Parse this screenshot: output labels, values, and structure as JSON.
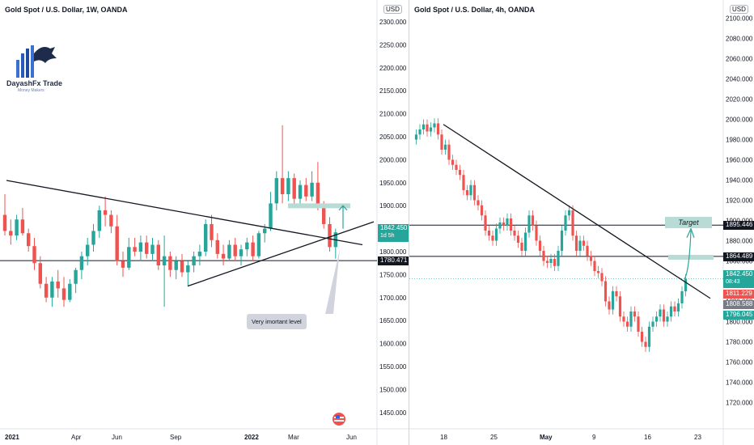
{
  "brand": {
    "name": "DayashFx Trade",
    "tagline": "Money Makers",
    "colors": {
      "bull": "#26a69a",
      "bear": "#ef5350",
      "accent": "#2962ff",
      "logo": "#1e2b4a"
    }
  },
  "currency_label": "USD",
  "annotation": {
    "callout": "Very imortant level",
    "target": "Target"
  },
  "chart_data": [
    {
      "type": "candlestick",
      "title": "Gold Spot / U.S. Dollar, 1W, OANDA",
      "ylim": [
        1432,
        2330
      ],
      "y_ticks": [
        "2300.000",
        "2250.000",
        "2200.000",
        "2150.000",
        "2100.000",
        "2050.000",
        "2000.000",
        "1950.000",
        "1900.000",
        "1850.000",
        "1800.000",
        "1750.000",
        "1700.000",
        "1650.000",
        "1600.000",
        "1550.000",
        "1500.000",
        "1450.000"
      ],
      "x_ticks": [
        "2021",
        "Apr",
        "Jun",
        "Sep",
        "2022",
        "Mar",
        "Jun"
      ],
      "price_labels": [
        {
          "value": "1842.450",
          "sub": "1d 5h",
          "color": "#26a69a"
        },
        {
          "value": "1780.471",
          "color": "#131722"
        }
      ],
      "levels": [
        1780.471
      ],
      "trendlines": [
        {
          "from": [
            "2021",
            1955
          ],
          "to": [
            "Jun",
            1815
          ]
        },
        {
          "from": [
            "Sep",
            1725
          ],
          "to": [
            "Jun",
            1865
          ]
        }
      ],
      "candles": [
        {
          "o": 1880,
          "h": 1925,
          "l": 1835,
          "c": 1845
        },
        {
          "o": 1845,
          "h": 1870,
          "l": 1815,
          "c": 1835
        },
        {
          "o": 1835,
          "h": 1880,
          "l": 1825,
          "c": 1870
        },
        {
          "o": 1870,
          "h": 1895,
          "l": 1835,
          "c": 1840
        },
        {
          "o": 1840,
          "h": 1850,
          "l": 1800,
          "c": 1812
        },
        {
          "o": 1812,
          "h": 1830,
          "l": 1760,
          "c": 1775
        },
        {
          "o": 1775,
          "h": 1790,
          "l": 1720,
          "c": 1730
        },
        {
          "o": 1730,
          "h": 1745,
          "l": 1690,
          "c": 1700
        },
        {
          "o": 1700,
          "h": 1745,
          "l": 1680,
          "c": 1735
        },
        {
          "o": 1735,
          "h": 1760,
          "l": 1700,
          "c": 1720
        },
        {
          "o": 1720,
          "h": 1745,
          "l": 1680,
          "c": 1695
        },
        {
          "o": 1695,
          "h": 1740,
          "l": 1690,
          "c": 1730
        },
        {
          "o": 1730,
          "h": 1765,
          "l": 1710,
          "c": 1760
        },
        {
          "o": 1760,
          "h": 1800,
          "l": 1740,
          "c": 1790
        },
        {
          "o": 1790,
          "h": 1830,
          "l": 1770,
          "c": 1815
        },
        {
          "o": 1815,
          "h": 1860,
          "l": 1800,
          "c": 1845
        },
        {
          "o": 1845,
          "h": 1900,
          "l": 1830,
          "c": 1890
        },
        {
          "o": 1890,
          "h": 1920,
          "l": 1855,
          "c": 1880
        },
        {
          "o": 1880,
          "h": 1890,
          "l": 1840,
          "c": 1855
        },
        {
          "o": 1855,
          "h": 1880,
          "l": 1770,
          "c": 1780
        },
        {
          "o": 1780,
          "h": 1800,
          "l": 1745,
          "c": 1765
        },
        {
          "o": 1765,
          "h": 1830,
          "l": 1760,
          "c": 1810
        },
        {
          "o": 1810,
          "h": 1830,
          "l": 1790,
          "c": 1800
        },
        {
          "o": 1800,
          "h": 1835,
          "l": 1780,
          "c": 1820
        },
        {
          "o": 1820,
          "h": 1835,
          "l": 1785,
          "c": 1795
        },
        {
          "o": 1795,
          "h": 1830,
          "l": 1780,
          "c": 1815
        },
        {
          "o": 1815,
          "h": 1825,
          "l": 1760,
          "c": 1770
        },
        {
          "o": 1770,
          "h": 1835,
          "l": 1680,
          "c": 1790
        },
        {
          "o": 1790,
          "h": 1800,
          "l": 1745,
          "c": 1760
        },
        {
          "o": 1760,
          "h": 1790,
          "l": 1740,
          "c": 1780
        },
        {
          "o": 1780,
          "h": 1795,
          "l": 1745,
          "c": 1755
        },
        {
          "o": 1755,
          "h": 1780,
          "l": 1725,
          "c": 1770
        },
        {
          "o": 1770,
          "h": 1800,
          "l": 1755,
          "c": 1790
        },
        {
          "o": 1790,
          "h": 1815,
          "l": 1770,
          "c": 1800
        },
        {
          "o": 1800,
          "h": 1870,
          "l": 1790,
          "c": 1860
        },
        {
          "o": 1860,
          "h": 1880,
          "l": 1810,
          "c": 1825
        },
        {
          "o": 1825,
          "h": 1840,
          "l": 1785,
          "c": 1795
        },
        {
          "o": 1795,
          "h": 1815,
          "l": 1770,
          "c": 1785
        },
        {
          "o": 1785,
          "h": 1825,
          "l": 1780,
          "c": 1815
        },
        {
          "o": 1815,
          "h": 1830,
          "l": 1780,
          "c": 1790
        },
        {
          "o": 1790,
          "h": 1815,
          "l": 1770,
          "c": 1805
        },
        {
          "o": 1805,
          "h": 1830,
          "l": 1790,
          "c": 1820
        },
        {
          "o": 1820,
          "h": 1835,
          "l": 1780,
          "c": 1790
        },
        {
          "o": 1790,
          "h": 1845,
          "l": 1785,
          "c": 1840
        },
        {
          "o": 1840,
          "h": 1860,
          "l": 1820,
          "c": 1850
        },
        {
          "o": 1850,
          "h": 1930,
          "l": 1845,
          "c": 1905
        },
        {
          "o": 1905,
          "h": 1975,
          "l": 1890,
          "c": 1960
        },
        {
          "o": 1960,
          "h": 2075,
          "l": 1905,
          "c": 1925
        },
        {
          "o": 1925,
          "h": 1975,
          "l": 1910,
          "c": 1960
        },
        {
          "o": 1960,
          "h": 1970,
          "l": 1895,
          "c": 1915
        },
        {
          "o": 1915,
          "h": 1955,
          "l": 1900,
          "c": 1945
        },
        {
          "o": 1945,
          "h": 1960,
          "l": 1910,
          "c": 1920
        },
        {
          "o": 1920,
          "h": 1975,
          "l": 1910,
          "c": 1950
        },
        {
          "o": 1950,
          "h": 1995,
          "l": 1890,
          "c": 1900
        },
        {
          "o": 1900,
          "h": 1910,
          "l": 1850,
          "c": 1860
        },
        {
          "o": 1860,
          "h": 1875,
          "l": 1800,
          "c": 1810
        },
        {
          "o": 1810,
          "h": 1850,
          "l": 1785,
          "c": 1842
        }
      ]
    },
    {
      "type": "candlestick",
      "title": "Gold Spot / U.S. Dollar, 4h, OANDA",
      "ylim": [
        1702,
        2110
      ],
      "y_ticks": [
        "2100.000",
        "2080.000",
        "2060.000",
        "2040.000",
        "2020.000",
        "2000.000",
        "1980.000",
        "1960.000",
        "1940.000",
        "1920.000",
        "1900.000",
        "1880.000",
        "1860.000",
        "1840.000",
        "1820.000",
        "1800.000",
        "1780.000",
        "1760.000",
        "1740.000",
        "1720.000"
      ],
      "x_ticks": [
        "18",
        "25",
        "May",
        "9",
        "16",
        "23"
      ],
      "price_labels": [
        {
          "value": "1895.446",
          "color": "#131722"
        },
        {
          "value": "1864.489",
          "color": "#131722"
        },
        {
          "value": "1842.450",
          "sub": "08:43",
          "color": "#26a69a"
        },
        {
          "value": "1811.229",
          "color": "#ef5350"
        },
        {
          "value": "1808.588",
          "color": "#787b86"
        },
        {
          "value": "1796.045",
          "color": "#26a69a"
        }
      ],
      "levels": [
        1895.446,
        1864.489
      ],
      "trendlines": [
        {
          "from": [
            "18",
            1995
          ],
          "to": [
            "23",
            1825
          ]
        }
      ]
    }
  ]
}
